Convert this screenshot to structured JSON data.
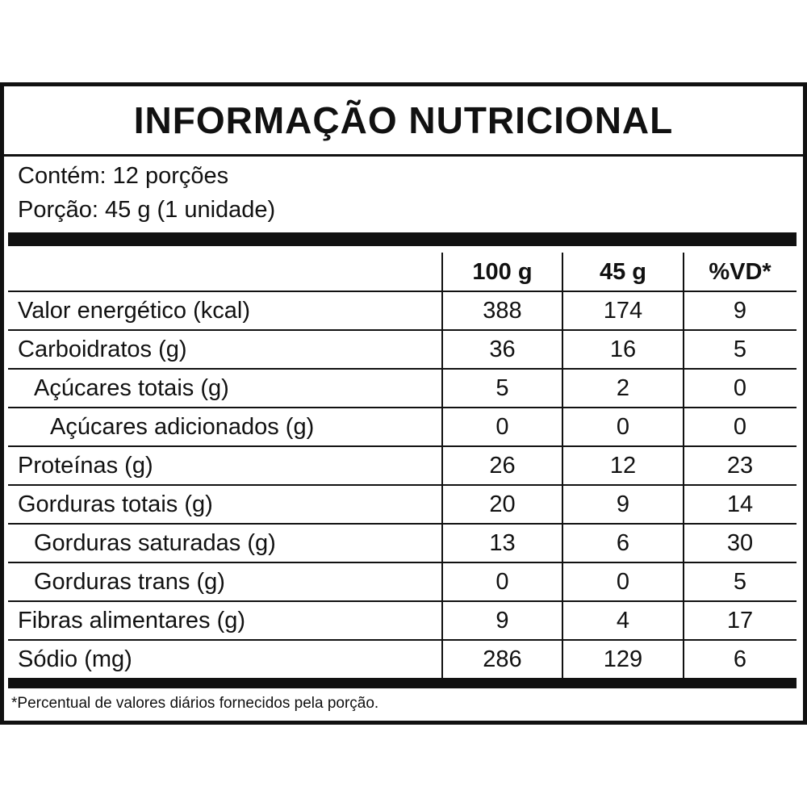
{
  "title": "INFORMAÇÃO NUTRICIONAL",
  "serving_info": [
    "Contém: 12 porções",
    "Porção: 45 g (1 unidade)"
  ],
  "table": {
    "header": [
      "100 g",
      "45 g",
      "%VD*"
    ],
    "rows": [
      [
        "Valor energético (kcal)",
        388,
        174,
        9
      ],
      [
        "Carboidratos (g)",
        36,
        16,
        5
      ],
      [
        "Açúcares totais (g)",
        5,
        2,
        0
      ],
      [
        "Açúcares adicionados (g)",
        0,
        0,
        0
      ],
      [
        "Proteínas (g)",
        26,
        12,
        23
      ],
      [
        "Gorduras totais (g)",
        20,
        9,
        14
      ],
      [
        "Gorduras saturadas (g)",
        13,
        6,
        30
      ],
      [
        "Gorduras trans (g)",
        0,
        0,
        5
      ],
      [
        "Fibras alimentares (g)",
        9,
        4,
        17
      ],
      [
        "Sódio (mg)",
        286,
        129,
        6
      ]
    ]
  },
  "footnote": "*Percentual de valores diários fornecidos pela porção."
}
